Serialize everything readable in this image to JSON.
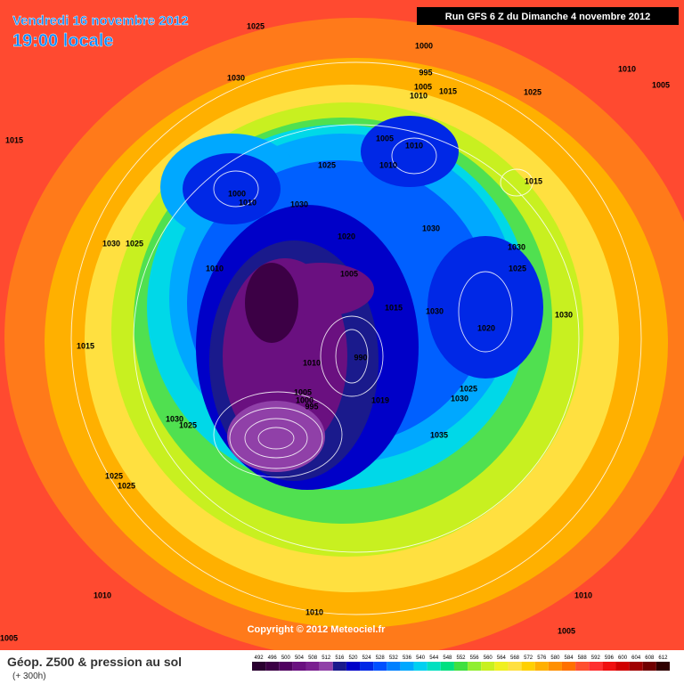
{
  "header": {
    "date": "Vendredi 16 novembre 2012",
    "time": "19:00 locale",
    "run": "Run GFS 6 Z du Dimanche 4 novembre 2012"
  },
  "footer": {
    "title": "Géop. Z500 & pression au sol",
    "lead": "(+ 300h)",
    "copyright": "Copyright © 2012 Meteociel.fr"
  },
  "isobar_labels": [
    "1025",
    "1030",
    "1000",
    "995",
    "1005",
    "1010",
    "1015",
    "1025",
    "1010",
    "1005",
    "1015",
    "1005",
    "1010",
    "1025",
    "1010",
    "1015",
    "1000",
    "1010",
    "1030",
    "1030",
    "1025",
    "1020",
    "1030",
    "1030",
    "1010",
    "1005",
    "1025",
    "1015",
    "1030",
    "1030",
    "1020",
    "1015",
    "1010",
    "990",
    "1005",
    "1000",
    "1025",
    "1030",
    "1019",
    "995",
    "1030",
    "1025",
    "1035",
    "1025",
    "1025",
    "1010",
    "1010",
    "1010",
    "1005",
    "1005"
  ],
  "legend": {
    "labels": [
      "492",
      "496",
      "500",
      "504",
      "508",
      "512",
      "516",
      "520",
      "524",
      "528",
      "532",
      "536",
      "540",
      "544",
      "548",
      "552",
      "556",
      "560",
      "564",
      "568",
      "572",
      "576",
      "580",
      "584",
      "588",
      "592",
      "596",
      "600",
      "604",
      "608",
      "612"
    ],
    "colors": [
      "#2a0030",
      "#3c0045",
      "#500060",
      "#6a1080",
      "#7a2090",
      "#9040a8",
      "#1a1a8c",
      "#0000c8",
      "#0028e6",
      "#0050ff",
      "#0080ff",
      "#00a8ff",
      "#00d0f0",
      "#00e0c0",
      "#00e080",
      "#40e040",
      "#90ee30",
      "#c8f020",
      "#f0f020",
      "#ffe040",
      "#ffd000",
      "#ffb000",
      "#ff9000",
      "#ff7000",
      "#ff5030",
      "#ff3030",
      "#f01010",
      "#d00000",
      "#a00000",
      "#700000",
      "#300000"
    ]
  }
}
